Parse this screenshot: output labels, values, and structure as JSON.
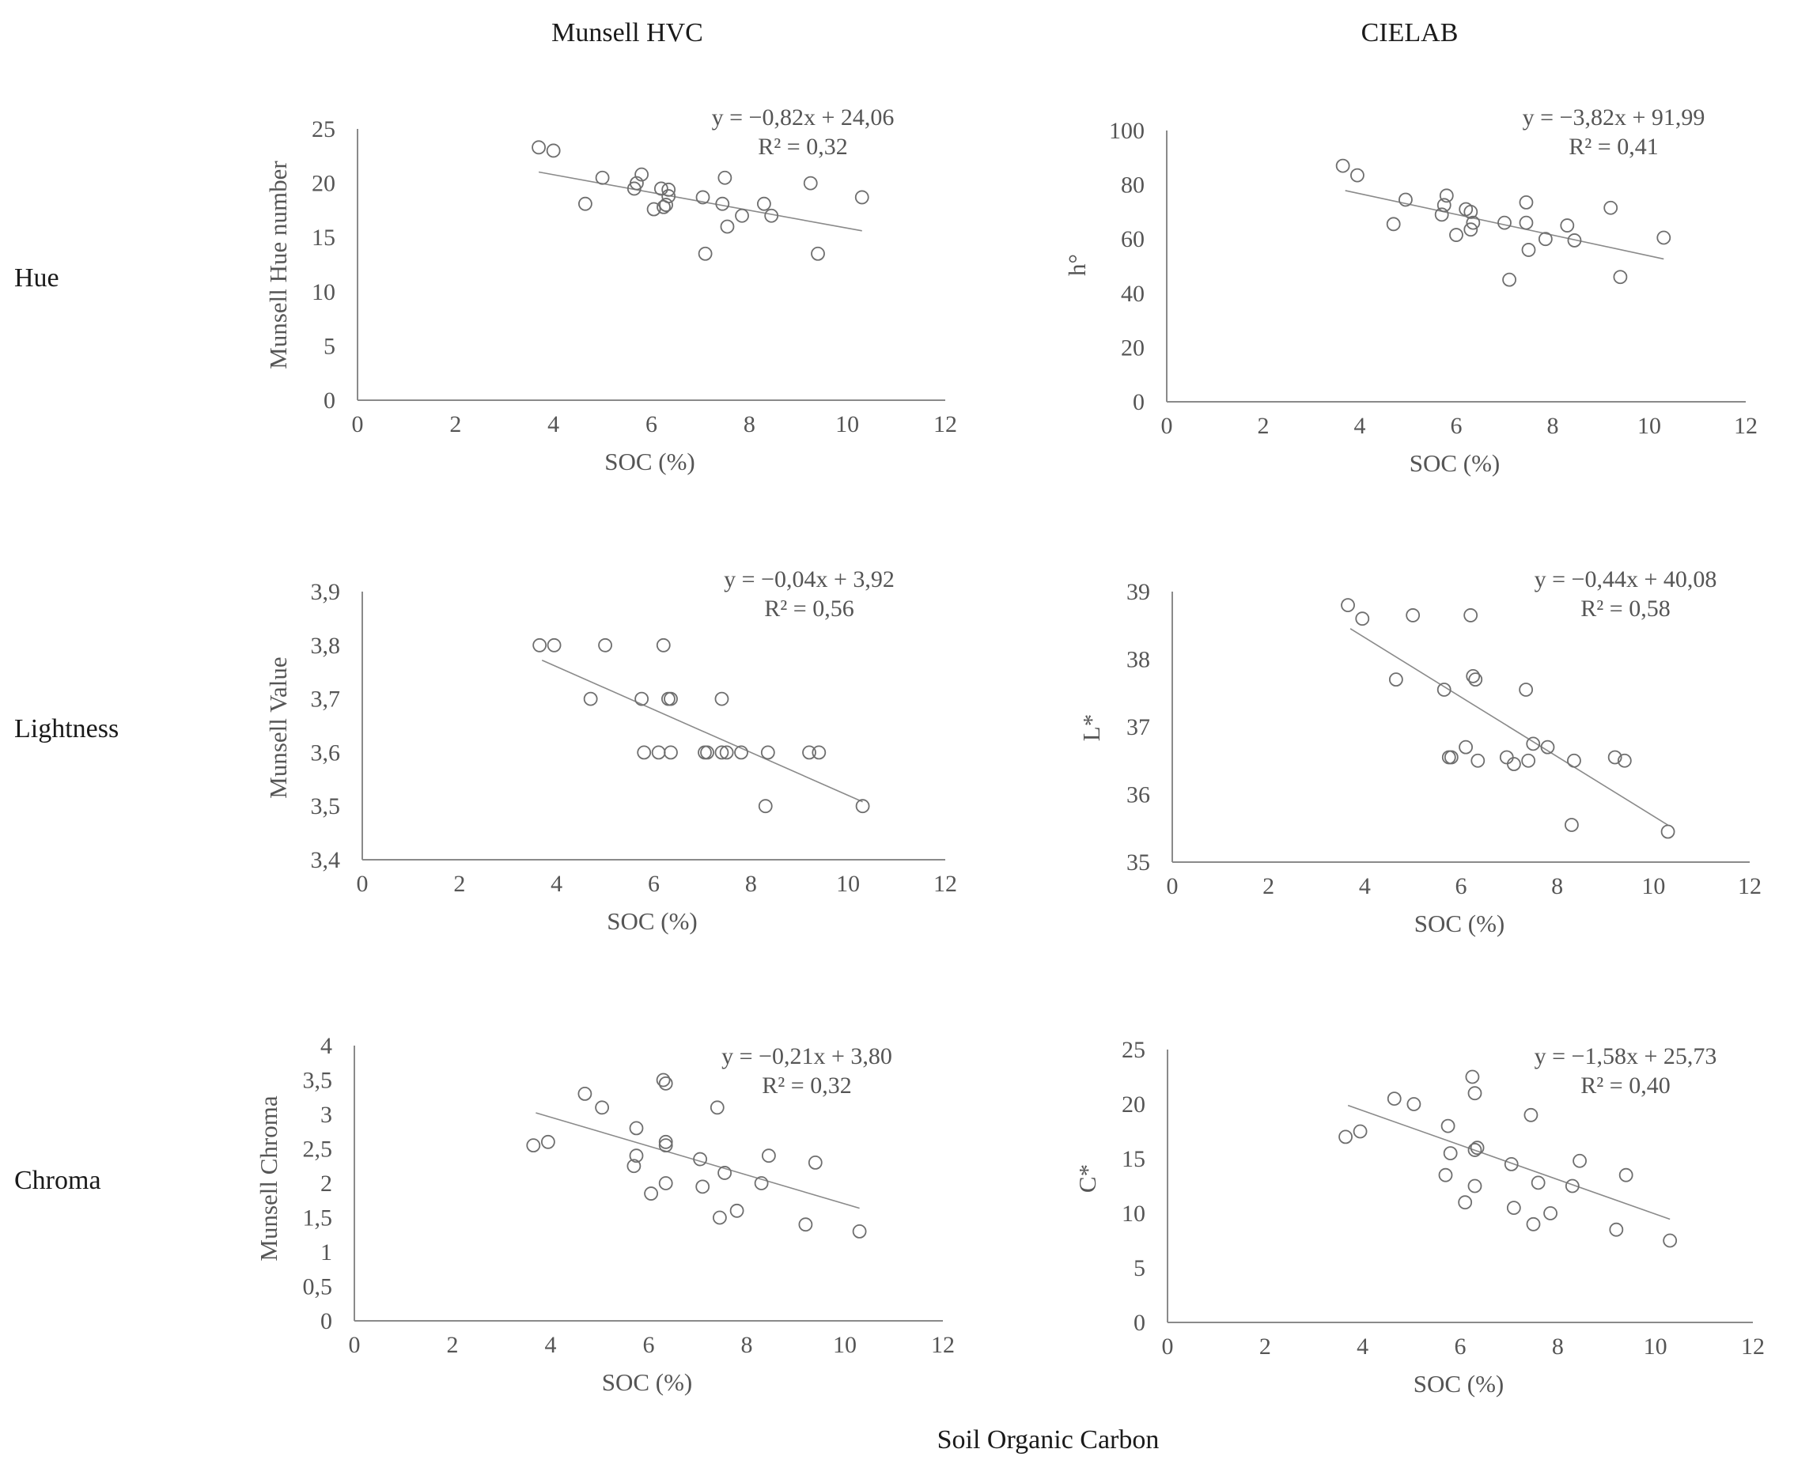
{
  "figure": {
    "column_headers": [
      "Munsell HVC",
      "CIELAB"
    ],
    "row_labels": [
      "Hue",
      "Lightness",
      "Chroma"
    ],
    "footer_label": "Soil Organic Carbon"
  },
  "chart_data": [
    {
      "id": "hue-munsell",
      "type": "scatter",
      "xlabel": "SOC (%)",
      "ylabel": "Munsell  Hue number",
      "xlim": [
        0,
        12
      ],
      "xticks": [
        0,
        2,
        4,
        6,
        8,
        10,
        12
      ],
      "xtick_labels": [
        "0",
        "2",
        "4",
        "6",
        "8",
        "10",
        "12"
      ],
      "ylim": [
        0,
        25
      ],
      "yticks": [
        0,
        5,
        10,
        15,
        20,
        25
      ],
      "ytick_labels": [
        "0",
        "5",
        "10",
        "15",
        "20",
        "25"
      ],
      "equation": "y = −0,82x + 24,06",
      "r2": "R² = 0,32",
      "trendline": {
        "slope": -0.82,
        "intercept": 24.06,
        "x_range": [
          3.7,
          10.3
        ]
      },
      "points": [
        [
          3.7,
          23.3
        ],
        [
          4.0,
          23.0
        ],
        [
          4.65,
          18.1
        ],
        [
          5.0,
          20.5
        ],
        [
          5.65,
          19.5
        ],
        [
          5.7,
          20.0
        ],
        [
          5.8,
          20.8
        ],
        [
          6.05,
          17.6
        ],
        [
          6.2,
          19.5
        ],
        [
          6.25,
          17.8
        ],
        [
          6.3,
          18.0
        ],
        [
          6.35,
          19.4
        ],
        [
          6.35,
          18.8
        ],
        [
          7.05,
          18.7
        ],
        [
          7.1,
          13.5
        ],
        [
          7.45,
          18.1
        ],
        [
          7.5,
          20.5
        ],
        [
          7.55,
          16.0
        ],
        [
          7.85,
          17.0
        ],
        [
          8.3,
          18.1
        ],
        [
          8.45,
          17.0
        ],
        [
          9.25,
          20.0
        ],
        [
          9.4,
          13.5
        ],
        [
          10.3,
          18.7
        ]
      ]
    },
    {
      "id": "hue-cielab",
      "type": "scatter",
      "xlabel": "SOC (%)",
      "ylabel": "h°",
      "xlim": [
        0,
        12
      ],
      "xticks": [
        0,
        2,
        4,
        6,
        8,
        10,
        12
      ],
      "xtick_labels": [
        "0",
        "2",
        "4",
        "6",
        "8",
        "10",
        "12"
      ],
      "ylim": [
        0,
        100
      ],
      "yticks": [
        0,
        20,
        40,
        60,
        80,
        100
      ],
      "ytick_labels": [
        "0",
        "20",
        "40",
        "60",
        "80",
        "100"
      ],
      "equation": "y = −3,82x + 91,99",
      "r2": "R² = 0,41",
      "trendline": {
        "slope": -3.82,
        "intercept": 91.99,
        "x_range": [
          3.7,
          10.3
        ]
      },
      "points": [
        [
          3.65,
          87.0
        ],
        [
          3.95,
          83.5
        ],
        [
          4.7,
          65.5
        ],
        [
          4.95,
          74.5
        ],
        [
          5.7,
          69.0
        ],
        [
          5.75,
          72.5
        ],
        [
          5.8,
          76.0
        ],
        [
          6.0,
          61.5
        ],
        [
          6.2,
          71.0
        ],
        [
          6.3,
          70.0
        ],
        [
          6.3,
          63.5
        ],
        [
          6.35,
          66.0
        ],
        [
          7.0,
          66.0
        ],
        [
          7.1,
          45.0
        ],
        [
          7.45,
          73.5
        ],
        [
          7.45,
          66.0
        ],
        [
          7.5,
          56.0
        ],
        [
          7.85,
          60.0
        ],
        [
          8.3,
          65.0
        ],
        [
          8.45,
          59.5
        ],
        [
          9.2,
          71.5
        ],
        [
          9.4,
          46.0
        ],
        [
          10.3,
          60.5
        ]
      ]
    },
    {
      "id": "lightness-munsell",
      "type": "scatter",
      "xlabel": "SOC (%)",
      "ylabel": "Munsell  Value",
      "xlim": [
        0,
        12
      ],
      "xticks": [
        0,
        2,
        4,
        6,
        8,
        10,
        12
      ],
      "xtick_labels": [
        "0",
        "2",
        "4",
        "6",
        "8",
        "10",
        "12"
      ],
      "ylim": [
        3.4,
        3.9
      ],
      "yticks": [
        3.4,
        3.5,
        3.6,
        3.7,
        3.8,
        3.9
      ],
      "ytick_labels": [
        "3,4",
        "3,5",
        "3,6",
        "3,7",
        "3,8",
        "3,9"
      ],
      "equation": "y = −0,04x + 3,92",
      "r2": "R² = 0,56",
      "trendline": {
        "slope": -0.04,
        "intercept": 3.92,
        "x_range": [
          3.7,
          10.3
        ]
      },
      "points": [
        [
          3.65,
          3.8
        ],
        [
          3.95,
          3.8
        ],
        [
          4.7,
          3.7
        ],
        [
          5.0,
          3.8
        ],
        [
          5.75,
          3.7
        ],
        [
          5.8,
          3.6
        ],
        [
          6.1,
          3.6
        ],
        [
          6.2,
          3.8
        ],
        [
          6.3,
          3.7
        ],
        [
          6.35,
          3.7
        ],
        [
          6.35,
          3.6
        ],
        [
          7.05,
          3.6
        ],
        [
          7.1,
          3.6
        ],
        [
          7.4,
          3.7
        ],
        [
          7.4,
          3.6
        ],
        [
          7.5,
          3.6
        ],
        [
          7.8,
          3.6
        ],
        [
          8.3,
          3.5
        ],
        [
          8.35,
          3.6
        ],
        [
          9.2,
          3.6
        ],
        [
          9.4,
          3.6
        ],
        [
          10.3,
          3.5
        ]
      ]
    },
    {
      "id": "lightness-cielab",
      "type": "scatter",
      "xlabel": "SOC (%)",
      "ylabel": "L*",
      "xlim": [
        0,
        12
      ],
      "xticks": [
        0,
        2,
        4,
        6,
        8,
        10,
        12
      ],
      "xtick_labels": [
        "0",
        "2",
        "4",
        "6",
        "8",
        "10",
        "12"
      ],
      "ylim": [
        35,
        39
      ],
      "yticks": [
        35,
        36,
        37,
        38,
        39
      ],
      "ytick_labels": [
        "35",
        "36",
        "37",
        "38",
        "39"
      ],
      "equation": "y = −0,44x + 40,08",
      "r2": "R² = 0,58",
      "trendline": {
        "slope": -0.44,
        "intercept": 40.08,
        "x_range": [
          3.7,
          10.3
        ]
      },
      "points": [
        [
          3.65,
          38.8
        ],
        [
          3.95,
          38.6
        ],
        [
          4.65,
          37.7
        ],
        [
          5.0,
          38.65
        ],
        [
          5.65,
          37.55
        ],
        [
          5.75,
          36.55
        ],
        [
          5.8,
          36.55
        ],
        [
          6.1,
          36.7
        ],
        [
          6.2,
          38.65
        ],
        [
          6.25,
          37.75
        ],
        [
          6.3,
          37.7
        ],
        [
          6.35,
          36.5
        ],
        [
          6.95,
          36.55
        ],
        [
          7.1,
          36.45
        ],
        [
          7.35,
          37.55
        ],
        [
          7.4,
          36.5
        ],
        [
          7.5,
          36.75
        ],
        [
          7.8,
          36.7
        ],
        [
          8.3,
          35.55
        ],
        [
          8.35,
          36.5
        ],
        [
          9.2,
          36.55
        ],
        [
          9.4,
          36.5
        ],
        [
          10.3,
          35.45
        ]
      ]
    },
    {
      "id": "chroma-munsell",
      "type": "scatter",
      "xlabel": "SOC (%)",
      "ylabel": "Munsell  Chroma",
      "xlim": [
        0,
        12
      ],
      "xticks": [
        0,
        2,
        4,
        6,
        8,
        10,
        12
      ],
      "xtick_labels": [
        "0",
        "2",
        "4",
        "6",
        "8",
        "10",
        "12"
      ],
      "ylim": [
        0,
        4
      ],
      "yticks": [
        0,
        0.5,
        1,
        1.5,
        2,
        2.5,
        3,
        3.5,
        4
      ],
      "ytick_labels": [
        "0",
        "0,5",
        "1",
        "1,5",
        "2",
        "2,5",
        "3",
        "3,5",
        "4"
      ],
      "equation": "y = −0,21x + 3,80",
      "r2": "R² = 0,32",
      "trendline": {
        "slope": -0.21,
        "intercept": 3.8,
        "x_range": [
          3.7,
          10.3
        ]
      },
      "points": [
        [
          3.65,
          2.55
        ],
        [
          3.95,
          2.6
        ],
        [
          4.7,
          3.3
        ],
        [
          5.05,
          3.1
        ],
        [
          5.75,
          2.8
        ],
        [
          5.75,
          2.4
        ],
        [
          5.7,
          2.25
        ],
        [
          6.05,
          1.85
        ],
        [
          6.3,
          3.5
        ],
        [
          6.35,
          3.45
        ],
        [
          6.35,
          2.6
        ],
        [
          6.35,
          2.55
        ],
        [
          6.35,
          2.0
        ],
        [
          7.05,
          2.35
        ],
        [
          7.1,
          1.95
        ],
        [
          7.4,
          3.1
        ],
        [
          7.45,
          1.5
        ],
        [
          7.55,
          2.15
        ],
        [
          7.8,
          1.6
        ],
        [
          8.3,
          2.0
        ],
        [
          8.45,
          2.4
        ],
        [
          9.2,
          1.4
        ],
        [
          9.4,
          2.3
        ],
        [
          10.3,
          1.3
        ]
      ]
    },
    {
      "id": "chroma-cielab",
      "type": "scatter",
      "xlabel": "SOC (%)",
      "ylabel": "C*",
      "xlim": [
        0,
        12
      ],
      "xticks": [
        0,
        2,
        4,
        6,
        8,
        10,
        12
      ],
      "xtick_labels": [
        "0",
        "2",
        "4",
        "6",
        "8",
        "10",
        "12"
      ],
      "ylim": [
        0,
        25
      ],
      "yticks": [
        0,
        5,
        10,
        15,
        20,
        25
      ],
      "ytick_labels": [
        "0",
        "5",
        "10",
        "15",
        "20",
        "25"
      ],
      "equation": "y = −1,58x + 25,73",
      "r2": "R² = 0,40",
      "trendline": {
        "slope": -1.58,
        "intercept": 25.73,
        "x_range": [
          3.7,
          10.3
        ]
      },
      "points": [
        [
          3.65,
          17.0
        ],
        [
          3.95,
          17.5
        ],
        [
          4.65,
          20.5
        ],
        [
          5.05,
          20.0
        ],
        [
          5.75,
          18.0
        ],
        [
          5.8,
          15.5
        ],
        [
          5.7,
          13.5
        ],
        [
          6.1,
          11.0
        ],
        [
          6.25,
          22.5
        ],
        [
          6.3,
          21.0
        ],
        [
          6.3,
          15.8
        ],
        [
          6.35,
          16.0
        ],
        [
          6.3,
          12.5
        ],
        [
          7.05,
          14.5
        ],
        [
          7.1,
          10.5
        ],
        [
          7.45,
          19.0
        ],
        [
          7.5,
          9.0
        ],
        [
          7.6,
          12.8
        ],
        [
          7.85,
          10.0
        ],
        [
          8.3,
          12.5
        ],
        [
          8.45,
          14.8
        ],
        [
          9.2,
          8.5
        ],
        [
          9.4,
          13.5
        ],
        [
          10.3,
          7.5
        ]
      ]
    }
  ]
}
